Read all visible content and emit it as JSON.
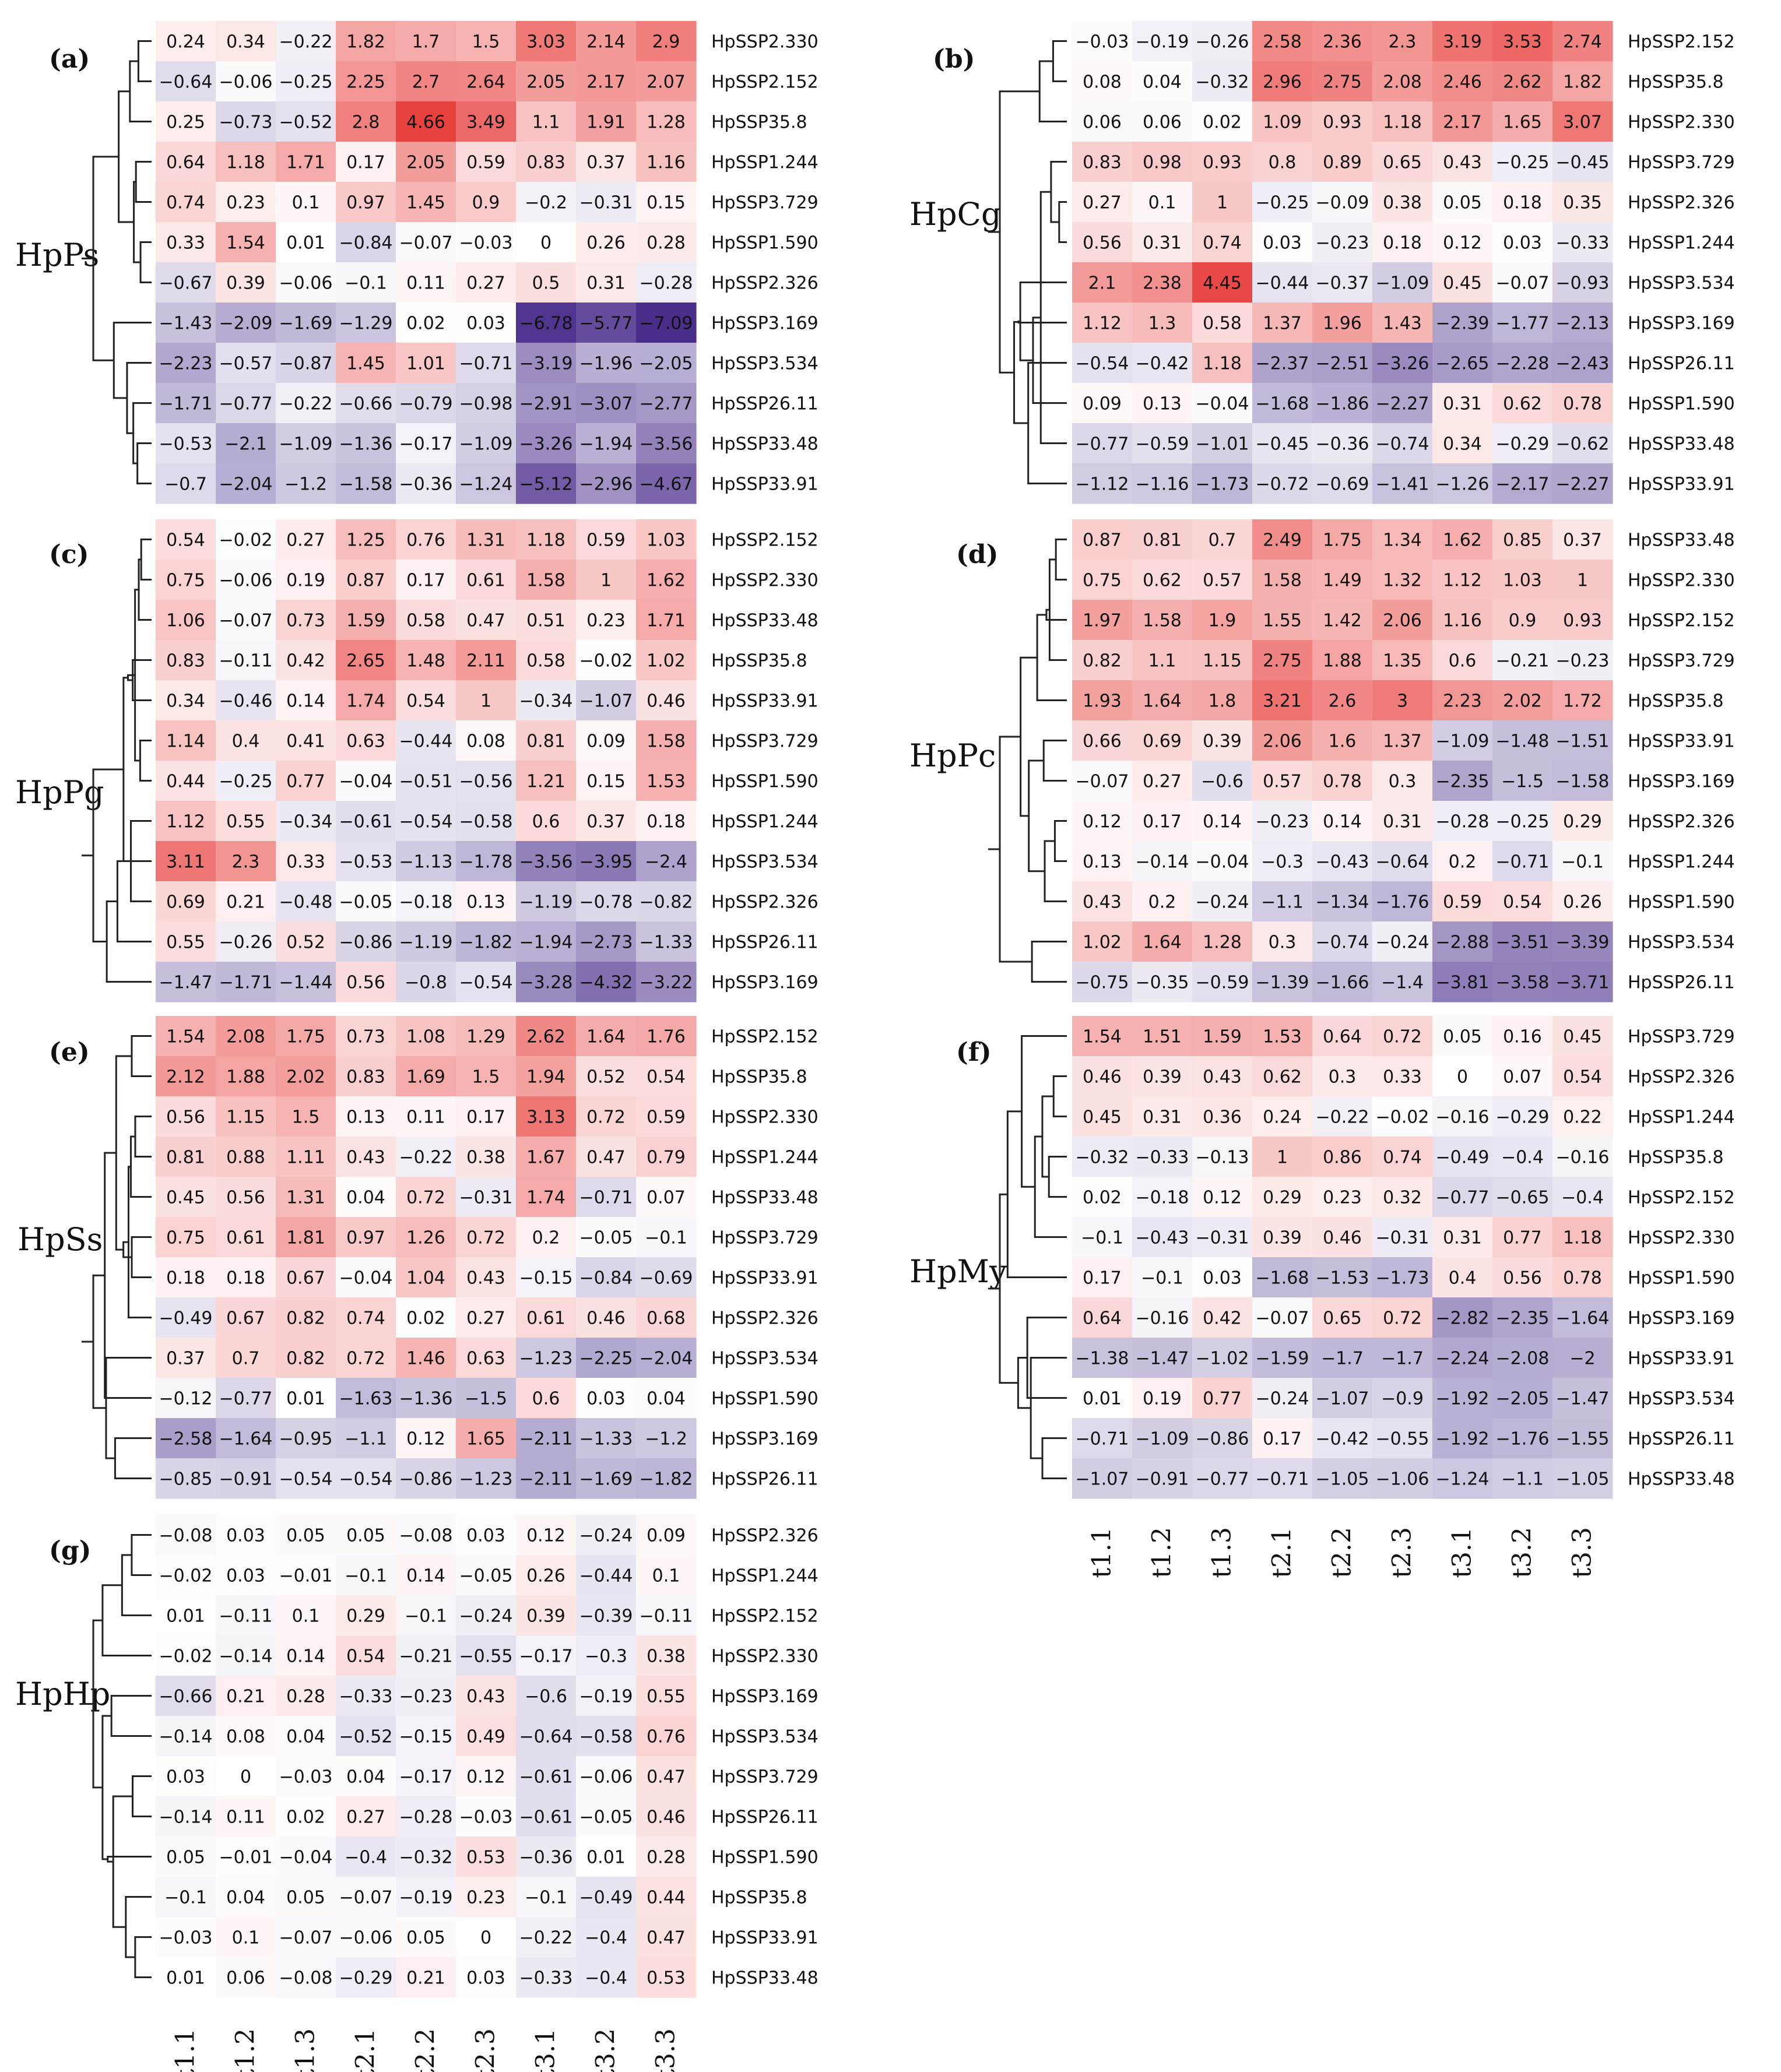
{
  "colors": {
    "high": "#e8423f",
    "mid": "#ffffff",
    "low": "#4a2e8c"
  },
  "chart_data": {
    "type": "heatmap",
    "color_scale": {
      "min": -7.09,
      "mid": 0,
      "max": 4.66
    },
    "columns": [
      "t1.1",
      "t1.2",
      "t1.3",
      "t2.1",
      "t2.2",
      "t2.3",
      "t3.1",
      "t3.2",
      "t3.3"
    ],
    "panels": [
      {
        "letter": "(a)",
        "name": "HpPs",
        "rows": [
          "HpSSP2.330",
          "HpSSP2.152",
          "HpSSP35.8",
          "HpSSP1.244",
          "HpSSP3.729",
          "HpSSP1.590",
          "HpSSP2.326",
          "HpSSP3.169",
          "HpSSP3.534",
          "HpSSP26.11",
          "HpSSP33.48",
          "HpSSP33.91"
        ],
        "values": [
          [
            0.24,
            0.34,
            -0.22,
            1.82,
            1.7,
            1.5,
            3.03,
            2.14,
            2.9
          ],
          [
            -0.64,
            -0.06,
            -0.25,
            2.25,
            2.7,
            2.64,
            2.05,
            2.17,
            2.07
          ],
          [
            0.25,
            -0.73,
            -0.52,
            2.8,
            4.66,
            3.49,
            1.1,
            1.91,
            1.28
          ],
          [
            0.64,
            1.18,
            1.71,
            0.17,
            2.05,
            0.59,
            0.83,
            0.37,
            1.16
          ],
          [
            0.74,
            0.23,
            0.1,
            0.97,
            1.45,
            0.9,
            -0.2,
            -0.31,
            0.15
          ],
          [
            0.33,
            1.54,
            0.01,
            -0.84,
            -0.07,
            -0.03,
            0,
            0.26,
            0.28
          ],
          [
            -0.67,
            0.39,
            -0.06,
            -0.1,
            0.11,
            0.27,
            0.5,
            0.31,
            -0.28
          ],
          [
            -1.43,
            -2.09,
            -1.69,
            -1.29,
            0.02,
            0.03,
            -6.78,
            -5.77,
            -7.09
          ],
          [
            -2.23,
            -0.57,
            -0.87,
            1.45,
            1.01,
            -0.71,
            -3.19,
            -1.96,
            -2.05
          ],
          [
            -1.71,
            -0.77,
            -0.22,
            -0.66,
            -0.79,
            -0.98,
            -2.91,
            -3.07,
            -2.77
          ],
          [
            -0.53,
            -2.1,
            -1.09,
            -1.36,
            -0.17,
            -1.09,
            -3.26,
            -1.94,
            -3.56
          ],
          [
            -0.7,
            -2.04,
            -1.2,
            -1.58,
            -0.36,
            -1.24,
            -5.12,
            -2.96,
            -4.67
          ]
        ]
      },
      {
        "letter": "(b)",
        "name": "HpCg",
        "rows": [
          "HpSSP2.152",
          "HpSSP35.8",
          "HpSSP2.330",
          "HpSSP3.729",
          "HpSSP2.326",
          "HpSSP1.244",
          "HpSSP3.534",
          "HpSSP3.169",
          "HpSSP26.11",
          "HpSSP1.590",
          "HpSSP33.48",
          "HpSSP33.91"
        ],
        "values": [
          [
            -0.03,
            -0.19,
            -0.26,
            2.58,
            2.36,
            2.3,
            3.19,
            3.53,
            2.74
          ],
          [
            0.08,
            0.04,
            -0.32,
            2.96,
            2.75,
            2.08,
            2.46,
            2.62,
            1.82
          ],
          [
            0.06,
            0.06,
            0.02,
            1.09,
            0.93,
            1.18,
            2.17,
            1.65,
            3.07
          ],
          [
            0.83,
            0.98,
            0.93,
            0.8,
            0.89,
            0.65,
            0.43,
            -0.25,
            -0.45
          ],
          [
            0.27,
            0.1,
            1,
            -0.25,
            -0.09,
            0.38,
            0.05,
            0.18,
            0.35
          ],
          [
            0.56,
            0.31,
            0.74,
            0.03,
            -0.23,
            0.18,
            0.12,
            0.03,
            -0.33
          ],
          [
            2.1,
            2.38,
            4.45,
            -0.44,
            -0.37,
            -1.09,
            0.45,
            -0.07,
            -0.93
          ],
          [
            1.12,
            1.3,
            0.58,
            1.37,
            1.96,
            1.43,
            -2.39,
            -1.77,
            -2.13
          ],
          [
            -0.54,
            -0.42,
            1.18,
            -2.37,
            -2.51,
            -3.26,
            -2.65,
            -2.28,
            -2.43
          ],
          [
            0.09,
            0.13,
            -0.04,
            -1.68,
            -1.86,
            -2.27,
            0.31,
            0.62,
            0.78
          ],
          [
            -0.77,
            -0.59,
            -1.01,
            -0.45,
            -0.36,
            -0.74,
            0.34,
            -0.29,
            -0.62
          ],
          [
            -1.12,
            -1.16,
            -1.73,
            -0.72,
            -0.69,
            -1.41,
            -1.26,
            -2.17,
            -2.27
          ]
        ]
      },
      {
        "letter": "(c)",
        "name": "HpPg",
        "rows": [
          "HpSSP2.152",
          "HpSSP2.330",
          "HpSSP33.48",
          "HpSSP35.8",
          "HpSSP33.91",
          "HpSSP3.729",
          "HpSSP1.590",
          "HpSSP1.244",
          "HpSSP3.534",
          "HpSSP2.326",
          "HpSSP26.11",
          "HpSSP3.169"
        ],
        "values": [
          [
            0.54,
            -0.02,
            0.27,
            1.25,
            0.76,
            1.31,
            1.18,
            0.59,
            1.03
          ],
          [
            0.75,
            -0.06,
            0.19,
            0.87,
            0.17,
            0.61,
            1.58,
            1,
            1.62
          ],
          [
            1.06,
            -0.07,
            0.73,
            1.59,
            0.58,
            0.47,
            0.51,
            0.23,
            1.71
          ],
          [
            0.83,
            -0.11,
            0.42,
            2.65,
            1.48,
            2.11,
            0.58,
            -0.02,
            1.02
          ],
          [
            0.34,
            -0.46,
            0.14,
            1.74,
            0.54,
            1,
            -0.34,
            -1.07,
            0.46
          ],
          [
            1.14,
            0.4,
            0.41,
            0.63,
            -0.44,
            0.08,
            0.81,
            0.09,
            1.58
          ],
          [
            0.44,
            -0.25,
            0.77,
            -0.04,
            -0.51,
            -0.56,
            1.21,
            0.15,
            1.53
          ],
          [
            1.12,
            0.55,
            -0.34,
            -0.61,
            -0.54,
            -0.58,
            0.6,
            0.37,
            0.18
          ],
          [
            3.11,
            2.3,
            0.33,
            -0.53,
            -1.13,
            -1.78,
            -3.56,
            -3.95,
            -2.4
          ],
          [
            0.69,
            0.21,
            -0.48,
            -0.05,
            -0.18,
            0.13,
            -1.19,
            -0.78,
            -0.82
          ],
          [
            0.55,
            -0.26,
            0.52,
            -0.86,
            -1.19,
            -1.82,
            -1.94,
            -2.73,
            -1.33
          ],
          [
            -1.47,
            -1.71,
            -1.44,
            0.56,
            -0.8,
            -0.54,
            -3.28,
            -4.32,
            -3.22
          ]
        ]
      },
      {
        "letter": "(d)",
        "name": "HpPc",
        "rows": [
          "HpSSP33.48",
          "HpSSP2.330",
          "HpSSP2.152",
          "HpSSP3.729",
          "HpSSP35.8",
          "HpSSP33.91",
          "HpSSP3.169",
          "HpSSP2.326",
          "HpSSP1.244",
          "HpSSP1.590",
          "HpSSP3.534",
          "HpSSP26.11"
        ],
        "values": [
          [
            0.87,
            0.81,
            0.7,
            2.49,
            1.75,
            1.34,
            1.62,
            0.85,
            0.37
          ],
          [
            0.75,
            0.62,
            0.57,
            1.58,
            1.49,
            1.32,
            1.12,
            1.03,
            1
          ],
          [
            1.97,
            1.58,
            1.9,
            1.55,
            1.42,
            2.06,
            1.16,
            0.9,
            0.93
          ],
          [
            0.82,
            1.1,
            1.15,
            2.75,
            1.88,
            1.35,
            0.6,
            -0.21,
            -0.23
          ],
          [
            1.93,
            1.64,
            1.8,
            3.21,
            2.6,
            3,
            2.23,
            2.02,
            1.72
          ],
          [
            0.66,
            0.69,
            0.39,
            2.06,
            1.6,
            1.37,
            -1.09,
            -1.48,
            -1.51
          ],
          [
            -0.07,
            0.27,
            -0.6,
            0.57,
            0.78,
            0.3,
            -2.35,
            -1.5,
            -1.58
          ],
          [
            0.12,
            0.17,
            0.14,
            -0.23,
            0.14,
            0.31,
            -0.28,
            -0.25,
            0.29
          ],
          [
            0.13,
            -0.14,
            -0.04,
            -0.3,
            -0.43,
            -0.64,
            0.2,
            -0.71,
            -0.1
          ],
          [
            0.43,
            0.2,
            -0.24,
            -1.1,
            -1.34,
            -1.76,
            0.59,
            0.54,
            0.26
          ],
          [
            1.02,
            1.64,
            1.28,
            0.3,
            -0.74,
            -0.24,
            -2.88,
            -3.51,
            -3.39
          ],
          [
            -0.75,
            -0.35,
            -0.59,
            -1.39,
            -1.66,
            -1.4,
            -3.81,
            -3.58,
            -3.71
          ]
        ]
      },
      {
        "letter": "(e)",
        "name": "HpSs",
        "rows": [
          "HpSSP2.152",
          "HpSSP35.8",
          "HpSSP2.330",
          "HpSSP1.244",
          "HpSSP33.48",
          "HpSSP3.729",
          "HpSSP33.91",
          "HpSSP2.326",
          "HpSSP3.534",
          "HpSSP1.590",
          "HpSSP3.169",
          "HpSSP26.11"
        ],
        "values": [
          [
            1.54,
            2.08,
            1.75,
            0.73,
            1.08,
            1.29,
            2.62,
            1.64,
            1.76
          ],
          [
            2.12,
            1.88,
            2.02,
            0.83,
            1.69,
            1.5,
            1.94,
            0.52,
            0.54
          ],
          [
            0.56,
            1.15,
            1.5,
            0.13,
            0.11,
            0.17,
            3.13,
            0.72,
            0.59
          ],
          [
            0.81,
            0.88,
            1.11,
            0.43,
            -0.22,
            0.38,
            1.67,
            0.47,
            0.79
          ],
          [
            0.45,
            0.56,
            1.31,
            0.04,
            0.72,
            -0.31,
            1.74,
            -0.71,
            0.07
          ],
          [
            0.75,
            0.61,
            1.81,
            0.97,
            1.26,
            0.72,
            0.2,
            -0.05,
            -0.1
          ],
          [
            0.18,
            0.18,
            0.67,
            -0.04,
            1.04,
            0.43,
            -0.15,
            -0.84,
            -0.69
          ],
          [
            -0.49,
            0.67,
            0.82,
            0.74,
            0.02,
            0.27,
            0.61,
            0.46,
            0.68
          ],
          [
            0.37,
            0.7,
            0.82,
            0.72,
            1.46,
            0.63,
            -1.23,
            -2.25,
            -2.04
          ],
          [
            -0.12,
            -0.77,
            0.01,
            -1.63,
            -1.36,
            -1.5,
            0.6,
            0.03,
            0.04
          ],
          [
            -2.58,
            -1.64,
            -0.95,
            -1.1,
            0.12,
            1.65,
            -2.11,
            -1.33,
            -1.2
          ],
          [
            -0.85,
            -0.91,
            -0.54,
            -0.54,
            -0.86,
            -1.23,
            -2.11,
            -1.69,
            -1.82
          ]
        ]
      },
      {
        "letter": "(f)",
        "name": "HpMy",
        "rows": [
          "HpSSP3.729",
          "HpSSP2.326",
          "HpSSP1.244",
          "HpSSP35.8",
          "HpSSP2.152",
          "HpSSP2.330",
          "HpSSP1.590",
          "HpSSP3.169",
          "HpSSP33.91",
          "HpSSP3.534",
          "HpSSP26.11",
          "HpSSP33.48"
        ],
        "values": [
          [
            1.54,
            1.51,
            1.59,
            1.53,
            0.64,
            0.72,
            0.05,
            0.16,
            0.45
          ],
          [
            0.46,
            0.39,
            0.43,
            0.62,
            0.3,
            0.33,
            0,
            0.07,
            0.54
          ],
          [
            0.45,
            0.31,
            0.36,
            0.24,
            -0.22,
            -0.02,
            -0.16,
            -0.29,
            0.22
          ],
          [
            -0.32,
            -0.33,
            -0.13,
            1,
            0.86,
            0.74,
            -0.49,
            -0.4,
            -0.16
          ],
          [
            0.02,
            -0.18,
            0.12,
            0.29,
            0.23,
            0.32,
            -0.77,
            -0.65,
            -0.4
          ],
          [
            -0.1,
            -0.43,
            -0.31,
            0.39,
            0.46,
            -0.31,
            0.31,
            0.77,
            1.18
          ],
          [
            0.17,
            -0.1,
            0.03,
            -1.68,
            -1.53,
            -1.73,
            0.4,
            0.56,
            0.78
          ],
          [
            0.64,
            -0.16,
            0.42,
            -0.07,
            0.65,
            0.72,
            -2.82,
            -2.35,
            -1.64
          ],
          [
            -1.38,
            -1.47,
            -1.02,
            -1.59,
            -1.7,
            -1.7,
            -2.24,
            -2.08,
            -2
          ],
          [
            0.01,
            0.19,
            0.77,
            -0.24,
            -1.07,
            -0.9,
            -1.92,
            -2.05,
            -1.47
          ],
          [
            -0.71,
            -1.09,
            -0.86,
            0.17,
            -0.42,
            -0.55,
            -1.92,
            -1.76,
            -1.55
          ],
          [
            -1.07,
            -0.91,
            -0.77,
            -0.71,
            -1.05,
            -1.06,
            -1.24,
            -1.1,
            -1.05
          ]
        ]
      },
      {
        "letter": "(g)",
        "name": "HpHp",
        "rows": [
          "HpSSP2.326",
          "HpSSP1.244",
          "HpSSP2.152",
          "HpSSP2.330",
          "HpSSP3.169",
          "HpSSP3.534",
          "HpSSP3.729",
          "HpSSP26.11",
          "HpSSP1.590",
          "HpSSP35.8",
          "HpSSP33.91",
          "HpSSP33.48"
        ],
        "values": [
          [
            -0.08,
            0.03,
            0.05,
            0.05,
            -0.08,
            0.03,
            0.12,
            -0.24,
            0.09
          ],
          [
            -0.02,
            0.03,
            -0.01,
            -0.1,
            0.14,
            -0.05,
            0.26,
            -0.44,
            0.1
          ],
          [
            0.01,
            -0.11,
            0.1,
            0.29,
            -0.1,
            -0.24,
            0.39,
            -0.39,
            -0.11
          ],
          [
            -0.02,
            -0.14,
            0.14,
            0.54,
            -0.21,
            -0.55,
            -0.17,
            -0.3,
            0.38
          ],
          [
            -0.66,
            0.21,
            0.28,
            -0.33,
            -0.23,
            0.43,
            -0.6,
            -0.19,
            0.55
          ],
          [
            -0.14,
            0.08,
            0.04,
            -0.52,
            -0.15,
            0.49,
            -0.64,
            -0.58,
            0.76
          ],
          [
            0.03,
            0,
            -0.03,
            0.04,
            -0.17,
            0.12,
            -0.61,
            -0.06,
            0.47
          ],
          [
            -0.14,
            0.11,
            0.02,
            0.27,
            -0.28,
            -0.03,
            -0.61,
            -0.05,
            0.46
          ],
          [
            0.05,
            -0.01,
            -0.04,
            -0.4,
            -0.32,
            0.53,
            -0.36,
            0.01,
            0.28
          ],
          [
            -0.1,
            0.04,
            0.05,
            -0.07,
            -0.19,
            0.23,
            -0.1,
            -0.49,
            0.44
          ],
          [
            -0.03,
            0.1,
            -0.07,
            -0.06,
            0.05,
            0,
            -0.22,
            -0.4,
            0.47
          ],
          [
            0.01,
            0.06,
            -0.08,
            -0.29,
            0.21,
            0.03,
            -0.33,
            -0.4,
            0.53
          ]
        ]
      }
    ]
  }
}
